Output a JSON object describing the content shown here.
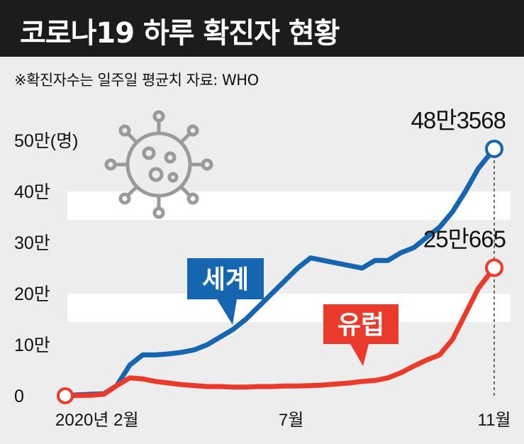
{
  "header": {
    "title": "코로나19 하루 확진자 현황",
    "note": "※확진자수는 일주일 평균치  자료: WHO"
  },
  "chart_data": {
    "type": "line",
    "title": "코로나19 하루 확진자 현황",
    "ylim": [
      0,
      500000
    ],
    "ytick_values": [
      0,
      100000,
      200000,
      300000,
      400000,
      500000
    ],
    "ytick_labels": [
      "0",
      "10만",
      "20만",
      "30만",
      "40만",
      "50만(명)"
    ],
    "xtick_positions": [
      0.5,
      5.25,
      9.97
    ],
    "xtick_labels": [
      "2020년 2월",
      "7월",
      "11월"
    ],
    "grid": "horizontal bands",
    "x": [
      0.0,
      0.3,
      0.6,
      0.9,
      1.2,
      1.5,
      1.8,
      2.1,
      2.4,
      2.7,
      3.0,
      3.3,
      3.6,
      3.9,
      4.2,
      4.5,
      4.8,
      5.1,
      5.4,
      5.7,
      6.0,
      6.3,
      6.6,
      6.9,
      7.2,
      7.5,
      7.8,
      8.1,
      8.4,
      8.7,
      9.0,
      9.3,
      9.6,
      9.97
    ],
    "series": [
      {
        "name": "세계",
        "color": "#1565b0",
        "values": [
          0,
          2000,
          3000,
          4000,
          20000,
          60000,
          80000,
          80000,
          82000,
          85000,
          90000,
          100000,
          115000,
          130000,
          150000,
          175000,
          200000,
          225000,
          250000,
          270000,
          265000,
          260000,
          255000,
          250000,
          265000,
          265000,
          280000,
          290000,
          310000,
          330000,
          360000,
          400000,
          445000,
          483568
        ]
      },
      {
        "name": "유럽",
        "color": "#ea3a2c",
        "values": [
          0,
          500,
          1000,
          3000,
          20000,
          35000,
          33000,
          28000,
          25000,
          22000,
          20000,
          18000,
          18000,
          17000,
          17000,
          18000,
          18000,
          19000,
          19000,
          20000,
          21000,
          23000,
          25000,
          28000,
          30000,
          35000,
          45000,
          58000,
          70000,
          80000,
          110000,
          160000,
          210000,
          250665
        ]
      }
    ],
    "annotations": [
      {
        "series": "세계",
        "label": "48만3568"
      },
      {
        "series": "유럽",
        "label": "25만665"
      }
    ]
  }
}
